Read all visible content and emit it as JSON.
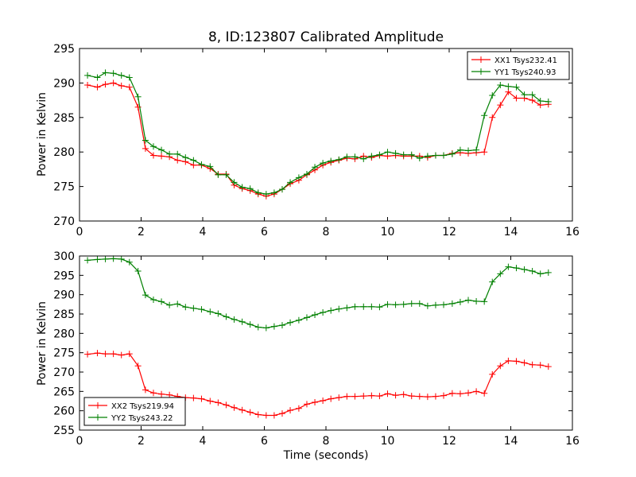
{
  "chart_data": [
    {
      "type": "line",
      "title": "8, ID:123807 Calibrated Amplitude",
      "xlabel": "",
      "ylabel": "Power in Kelvin",
      "xlim": [
        0,
        16
      ],
      "ylim": [
        270,
        295
      ],
      "xticks": [
        "0",
        "2",
        "4",
        "6",
        "8",
        "10",
        "12",
        "14",
        "16"
      ],
      "yticks": [
        "270",
        "275",
        "280",
        "285",
        "290",
        "295"
      ],
      "legend_position": "top-right",
      "x": [
        0.26,
        0.58,
        0.84,
        1.1,
        1.36,
        1.62,
        1.9,
        2.14,
        2.4,
        2.66,
        2.92,
        3.18,
        3.44,
        3.7,
        3.96,
        4.24,
        4.5,
        4.76,
        5.02,
        5.28,
        5.54,
        5.8,
        6.06,
        6.32,
        6.58,
        6.84,
        7.12,
        7.38,
        7.64,
        7.9,
        8.16,
        8.42,
        8.68,
        8.94,
        9.22,
        9.48,
        9.74,
        10.0,
        10.26,
        10.52,
        10.78,
        11.04,
        11.3,
        11.56,
        11.82,
        12.1,
        12.36,
        12.62,
        12.88,
        13.14,
        13.4,
        13.66,
        13.92,
        14.18,
        14.44,
        14.7,
        14.96,
        15.22
      ],
      "series": [
        {
          "name": "XX1 Tsys232.41",
          "color": "#ff0000",
          "values": [
            289.7,
            289.4,
            289.8,
            290.0,
            289.6,
            289.4,
            286.5,
            280.5,
            279.5,
            279.4,
            279.3,
            278.8,
            278.6,
            278.1,
            278.1,
            277.6,
            276.8,
            276.8,
            275.2,
            274.7,
            274.4,
            273.9,
            273.6,
            273.9,
            274.6,
            275.4,
            275.9,
            276.7,
            277.4,
            278.1,
            278.5,
            278.8,
            279.1,
            279.0,
            279.4,
            279.2,
            279.5,
            279.4,
            279.5,
            279.4,
            279.4,
            279.4,
            279.2,
            279.5,
            279.5,
            279.8,
            279.9,
            279.8,
            279.9,
            280.0,
            285.0,
            286.8,
            288.7,
            287.8,
            287.8,
            287.5,
            286.8,
            286.9
          ]
        },
        {
          "name": "YY1 Tsys240.93",
          "color": "#008000",
          "values": [
            291.1,
            290.8,
            291.5,
            291.4,
            291.1,
            290.8,
            288.0,
            281.7,
            280.8,
            280.3,
            279.7,
            279.7,
            279.2,
            278.8,
            278.2,
            277.9,
            276.7,
            276.7,
            275.6,
            274.9,
            274.7,
            274.1,
            273.9,
            274.1,
            274.6,
            275.6,
            276.3,
            276.8,
            277.8,
            278.4,
            278.7,
            278.9,
            279.3,
            279.3,
            279.0,
            279.4,
            279.6,
            280.0,
            279.8,
            279.6,
            279.6,
            279.1,
            279.4,
            279.5,
            279.5,
            279.7,
            280.3,
            280.2,
            280.3,
            285.3,
            288.2,
            289.7,
            289.5,
            289.4,
            288.3,
            288.3,
            287.4,
            287.3
          ]
        }
      ]
    },
    {
      "type": "line",
      "title": "",
      "xlabel": "Time (seconds)",
      "ylabel": "Power in Kelvin",
      "xlim": [
        0,
        16
      ],
      "ylim": [
        255,
        300
      ],
      "xticks": [
        "0",
        "2",
        "4",
        "6",
        "8",
        "10",
        "12",
        "14",
        "16"
      ],
      "yticks": [
        "255",
        "260",
        "265",
        "270",
        "275",
        "280",
        "285",
        "290",
        "295",
        "300"
      ],
      "legend_position": "bottom-left",
      "x": [
        0.26,
        0.58,
        0.84,
        1.1,
        1.36,
        1.62,
        1.9,
        2.14,
        2.4,
        2.66,
        2.92,
        3.18,
        3.44,
        3.7,
        3.96,
        4.24,
        4.5,
        4.76,
        5.02,
        5.28,
        5.54,
        5.8,
        6.06,
        6.32,
        6.58,
        6.84,
        7.12,
        7.38,
        7.64,
        7.9,
        8.16,
        8.42,
        8.68,
        8.94,
        9.22,
        9.48,
        9.74,
        10.0,
        10.26,
        10.52,
        10.78,
        11.04,
        11.3,
        11.56,
        11.82,
        12.1,
        12.36,
        12.62,
        12.88,
        13.14,
        13.4,
        13.66,
        13.92,
        14.18,
        14.44,
        14.7,
        14.96,
        15.22
      ],
      "series": [
        {
          "name": "XX2 Tsys219.94",
          "color": "#ff0000",
          "values": [
            274.6,
            274.9,
            274.7,
            274.7,
            274.4,
            274.7,
            271.6,
            265.4,
            264.6,
            264.3,
            264.1,
            263.7,
            263.4,
            263.3,
            263.1,
            262.5,
            262.1,
            261.5,
            260.8,
            260.2,
            259.6,
            259.0,
            258.8,
            258.8,
            259.3,
            260.1,
            260.6,
            261.7,
            262.2,
            262.6,
            263.1,
            263.4,
            263.7,
            263.7,
            263.8,
            263.9,
            263.8,
            264.4,
            264.0,
            264.2,
            263.8,
            263.7,
            263.6,
            263.7,
            263.9,
            264.5,
            264.4,
            264.6,
            265.0,
            264.5,
            269.4,
            271.6,
            272.9,
            272.8,
            272.4,
            271.9,
            271.8,
            271.4
          ]
        },
        {
          "name": "YY2 Tsys243.22",
          "color": "#008000",
          "values": [
            298.9,
            299.1,
            299.2,
            299.3,
            299.2,
            298.4,
            296.1,
            289.9,
            288.7,
            288.2,
            287.3,
            287.6,
            286.8,
            286.5,
            286.2,
            285.6,
            285.1,
            284.3,
            283.6,
            283.0,
            282.3,
            281.6,
            281.4,
            281.8,
            282.1,
            282.8,
            283.4,
            284.1,
            284.8,
            285.4,
            285.9,
            286.3,
            286.6,
            286.9,
            286.9,
            286.9,
            286.8,
            287.5,
            287.4,
            287.5,
            287.7,
            287.7,
            287.1,
            287.3,
            287.4,
            287.7,
            288.1,
            288.6,
            288.3,
            288.2,
            293.3,
            295.4,
            297.2,
            296.9,
            296.5,
            296.1,
            295.4,
            295.7
          ]
        }
      ]
    }
  ]
}
